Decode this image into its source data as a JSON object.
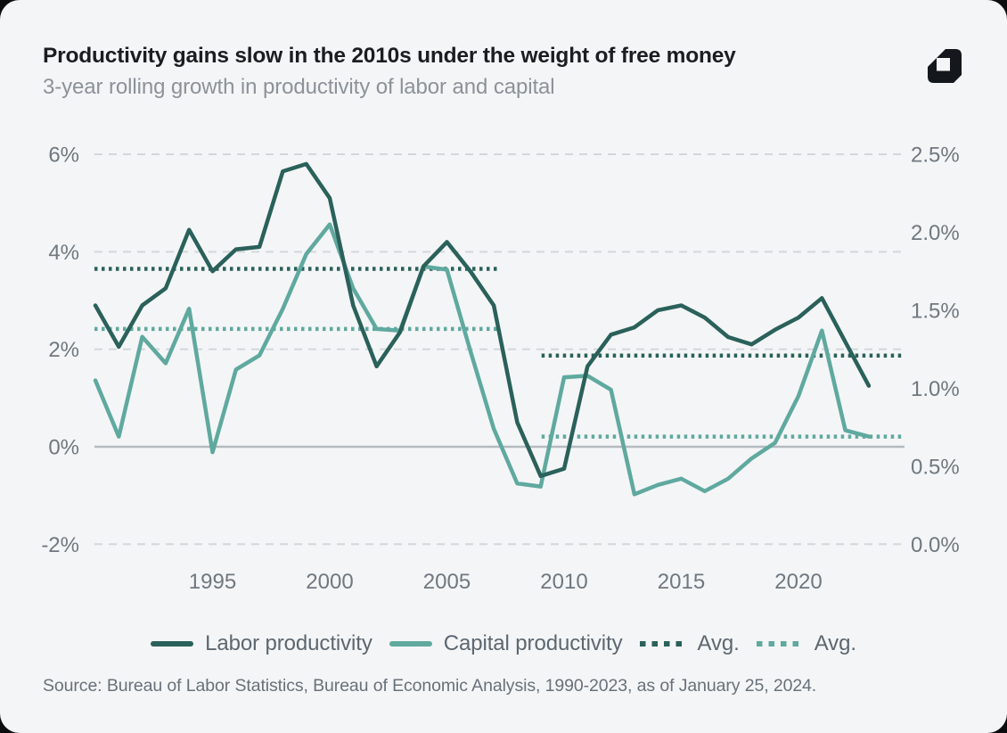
{
  "page": {
    "outer_background": "#0c0d0e",
    "card_background": "#f4f5f6"
  },
  "header": {
    "title": "Productivity gains slow in the 2010s under the weight of free money",
    "subtitle": "3-year rolling growth in productivity of labor and capital",
    "title_color": "#1a1d21",
    "subtitle_color": "#8b9299"
  },
  "logo": {
    "name": "sherwood-mark",
    "color": "#14171b"
  },
  "chart_data": {
    "type": "line",
    "title": "Productivity gains slow in the 2010s under the weight of free money",
    "subtitle": "3-year rolling growth in productivity of labor and capital",
    "grid": "dashed-horizontal",
    "legend_position": "bottom",
    "x": [
      1990,
      1991,
      1992,
      1993,
      1994,
      1995,
      1996,
      1997,
      1998,
      1999,
      2000,
      2001,
      2002,
      2003,
      2004,
      2005,
      2006,
      2007,
      2008,
      2009,
      2010,
      2011,
      2012,
      2013,
      2014,
      2015,
      2016,
      2017,
      2018,
      2019,
      2020,
      2021,
      2022,
      2023
    ],
    "x_ticks": [
      "1995",
      "2000",
      "2005",
      "2010",
      "2015",
      "2020"
    ],
    "x_tick_years": [
      1995,
      2000,
      2005,
      2010,
      2015,
      2020
    ],
    "left_axis": {
      "ticks": [
        {
          "label": "6%",
          "value": 6
        },
        {
          "label": "4%",
          "value": 4
        },
        {
          "label": "2%",
          "value": 2
        },
        {
          "label": "0%",
          "value": 0
        },
        {
          "label": "-2%",
          "value": -2
        }
      ],
      "ylim": [
        -2,
        6
      ],
      "zero_line_value": 0
    },
    "right_axis": {
      "ticks": [
        {
          "label": "2.5%"
        },
        {
          "label": "2.0%"
        },
        {
          "label": "1.5%"
        },
        {
          "label": "1.0%"
        },
        {
          "label": "0.5%"
        },
        {
          "label": "0.0%"
        }
      ],
      "ylim": [
        0,
        2.5
      ]
    },
    "series": [
      {
        "name": "Labor productivity",
        "axis": "left",
        "style": "solid",
        "color": "#2a615a",
        "values": [
          2.9,
          2.05,
          2.9,
          3.25,
          4.45,
          3.6,
          4.05,
          4.1,
          5.65,
          5.8,
          5.1,
          2.9,
          1.65,
          2.35,
          3.7,
          4.2,
          3.6,
          2.9,
          0.5,
          -0.6,
          -0.45,
          1.65,
          2.3,
          2.45,
          2.8,
          2.9,
          2.65,
          2.25,
          2.1,
          2.4,
          2.65,
          3.05,
          2.15,
          1.25
        ]
      },
      {
        "name": "Capital productivity",
        "axis": "right",
        "style": "solid",
        "color": "#5fa99f",
        "values": [
          1.05,
          0.69,
          1.33,
          1.16,
          1.51,
          0.59,
          1.12,
          1.21,
          1.51,
          1.86,
          2.05,
          1.64,
          1.38,
          1.37,
          1.78,
          1.76,
          1.24,
          0.74,
          0.39,
          0.37,
          1.07,
          1.08,
          0.99,
          0.32,
          0.38,
          0.42,
          0.34,
          0.42,
          0.55,
          0.65,
          0.95,
          1.37,
          0.73,
          0.69
        ]
      }
    ],
    "avg_lines": [
      {
        "series": "Labor productivity",
        "axis": "left",
        "style": "dotted",
        "color": "#2a615a",
        "from": 1990,
        "to": 2007,
        "value": 3.65
      },
      {
        "series": "Labor productivity",
        "axis": "left",
        "style": "dotted",
        "color": "#2a615a",
        "from": 2009,
        "to": 2023,
        "value": 1.87
      },
      {
        "series": "Capital productivity",
        "axis": "right",
        "style": "dotted",
        "color": "#5fa99f",
        "from": 1990,
        "to": 2007,
        "value": 1.38
      },
      {
        "series": "Capital productivity",
        "axis": "right",
        "style": "dotted",
        "color": "#5fa99f",
        "from": 2009,
        "to": 2023,
        "value": 0.69
      }
    ],
    "grid_color": "#d2d7dc",
    "zero_line_color": "#b4bac0"
  },
  "legend": {
    "items": [
      {
        "label": "Labor productivity",
        "swatch": "solid",
        "color": "#2a615a"
      },
      {
        "label": "Capital productivity",
        "swatch": "solid",
        "color": "#5fa99f"
      },
      {
        "label": "Avg.",
        "swatch": "dotted",
        "color": "#2a615a"
      },
      {
        "label": "Avg.",
        "swatch": "dotted",
        "color": "#5fa99f"
      }
    ]
  },
  "source": {
    "text": "Source: Bureau of Labor Statistics, Bureau of Economic Analysis, 1990-2023, as of January 25, 2024."
  }
}
